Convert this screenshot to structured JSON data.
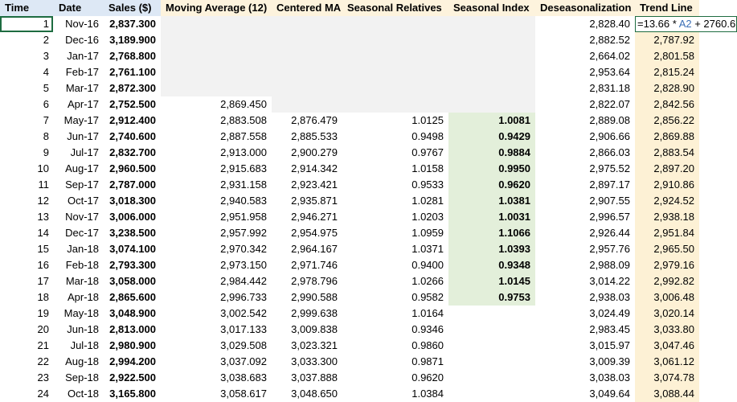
{
  "headers": {
    "time": "Time",
    "date": "Date",
    "sales": "Sales ($)",
    "ma": "Moving Average (12)",
    "cma": "Centered MA",
    "sr": "Seasonal Relatives",
    "si": "Seasonal Index",
    "des": "Deseasonalization",
    "trend": "Trend Line"
  },
  "formula": {
    "prefix": "=13.66 * ",
    "ref": "A2",
    "suffix": " + 2760.6"
  },
  "rows": [
    {
      "time": "1",
      "date": "Nov-16",
      "sales": "2,837.300",
      "ma": "",
      "cma": "",
      "sr": "",
      "si": "",
      "des": "2,828.40",
      "trend": ""
    },
    {
      "time": "2",
      "date": "Dec-16",
      "sales": "3,189.900",
      "ma": "",
      "cma": "",
      "sr": "",
      "si": "",
      "des": "2,882.52",
      "trend": "2,787.92"
    },
    {
      "time": "3",
      "date": "Jan-17",
      "sales": "2,768.800",
      "ma": "",
      "cma": "",
      "sr": "",
      "si": "",
      "des": "2,664.02",
      "trend": "2,801.58"
    },
    {
      "time": "4",
      "date": "Feb-17",
      "sales": "2,761.100",
      "ma": "",
      "cma": "",
      "sr": "",
      "si": "",
      "des": "2,953.64",
      "trend": "2,815.24"
    },
    {
      "time": "5",
      "date": "Mar-17",
      "sales": "2,872.300",
      "ma": "",
      "cma": "",
      "sr": "",
      "si": "",
      "des": "2,831.18",
      "trend": "2,828.90"
    },
    {
      "time": "6",
      "date": "Apr-17",
      "sales": "2,752.500",
      "ma": "2,869.450",
      "cma": "",
      "sr": "",
      "si": "",
      "des": "2,822.07",
      "trend": "2,842.56"
    },
    {
      "time": "7",
      "date": "May-17",
      "sales": "2,912.400",
      "ma": "2,883.508",
      "cma": "2,876.479",
      "sr": "1.0125",
      "si": "1.0081",
      "des": "2,889.08",
      "trend": "2,856.22"
    },
    {
      "time": "8",
      "date": "Jun-17",
      "sales": "2,740.600",
      "ma": "2,887.558",
      "cma": "2,885.533",
      "sr": "0.9498",
      "si": "0.9429",
      "des": "2,906.66",
      "trend": "2,869.88"
    },
    {
      "time": "9",
      "date": "Jul-17",
      "sales": "2,832.700",
      "ma": "2,913.000",
      "cma": "2,900.279",
      "sr": "0.9767",
      "si": "0.9884",
      "des": "2,866.03",
      "trend": "2,883.54"
    },
    {
      "time": "10",
      "date": "Aug-17",
      "sales": "2,960.500",
      "ma": "2,915.683",
      "cma": "2,914.342",
      "sr": "1.0158",
      "si": "0.9950",
      "des": "2,975.52",
      "trend": "2,897.20"
    },
    {
      "time": "11",
      "date": "Sep-17",
      "sales": "2,787.000",
      "ma": "2,931.158",
      "cma": "2,923.421",
      "sr": "0.9533",
      "si": "0.9620",
      "des": "2,897.17",
      "trend": "2,910.86"
    },
    {
      "time": "12",
      "date": "Oct-17",
      "sales": "3,018.300",
      "ma": "2,940.583",
      "cma": "2,935.871",
      "sr": "1.0281",
      "si": "1.0381",
      "des": "2,907.55",
      "trend": "2,924.52"
    },
    {
      "time": "13",
      "date": "Nov-17",
      "sales": "3,006.000",
      "ma": "2,951.958",
      "cma": "2,946.271",
      "sr": "1.0203",
      "si": "1.0031",
      "des": "2,996.57",
      "trend": "2,938.18"
    },
    {
      "time": "14",
      "date": "Dec-17",
      "sales": "3,238.500",
      "ma": "2,957.992",
      "cma": "2,954.975",
      "sr": "1.0959",
      "si": "1.1066",
      "des": "2,926.44",
      "trend": "2,951.84"
    },
    {
      "time": "15",
      "date": "Jan-18",
      "sales": "3,074.100",
      "ma": "2,970.342",
      "cma": "2,964.167",
      "sr": "1.0371",
      "si": "1.0393",
      "des": "2,957.76",
      "trend": "2,965.50"
    },
    {
      "time": "16",
      "date": "Feb-18",
      "sales": "2,793.300",
      "ma": "2,973.150",
      "cma": "2,971.746",
      "sr": "0.9400",
      "si": "0.9348",
      "des": "2,988.09",
      "trend": "2,979.16"
    },
    {
      "time": "17",
      "date": "Mar-18",
      "sales": "3,058.000",
      "ma": "2,984.442",
      "cma": "2,978.796",
      "sr": "1.0266",
      "si": "1.0145",
      "des": "3,014.22",
      "trend": "2,992.82"
    },
    {
      "time": "18",
      "date": "Apr-18",
      "sales": "2,865.600",
      "ma": "2,996.733",
      "cma": "2,990.588",
      "sr": "0.9582",
      "si": "0.9753",
      "des": "2,938.03",
      "trend": "3,006.48"
    },
    {
      "time": "19",
      "date": "May-18",
      "sales": "3,048.900",
      "ma": "3,002.542",
      "cma": "2,999.638",
      "sr": "1.0164",
      "si": "",
      "des": "3,024.49",
      "trend": "3,020.14"
    },
    {
      "time": "20",
      "date": "Jun-18",
      "sales": "2,813.000",
      "ma": "3,017.133",
      "cma": "3,009.838",
      "sr": "0.9346",
      "si": "",
      "des": "2,983.45",
      "trend": "3,033.80"
    },
    {
      "time": "21",
      "date": "Jul-18",
      "sales": "2,980.900",
      "ma": "3,029.508",
      "cma": "3,023.321",
      "sr": "0.9860",
      "si": "",
      "des": "3,015.97",
      "trend": "3,047.46"
    },
    {
      "time": "22",
      "date": "Aug-18",
      "sales": "2,994.200",
      "ma": "3,037.092",
      "cma": "3,033.300",
      "sr": "0.9871",
      "si": "",
      "des": "3,009.39",
      "trend": "3,061.12"
    },
    {
      "time": "23",
      "date": "Sep-18",
      "sales": "2,922.500",
      "ma": "3,038.683",
      "cma": "3,037.888",
      "sr": "0.9620",
      "si": "",
      "des": "3,038.03",
      "trend": "3,074.78"
    },
    {
      "time": "24",
      "date": "Oct-18",
      "sales": "3,165.800",
      "ma": "3,058.617",
      "cma": "3,048.650",
      "sr": "1.0384",
      "si": "",
      "des": "3,049.64",
      "trend": "3,088.44"
    }
  ]
}
